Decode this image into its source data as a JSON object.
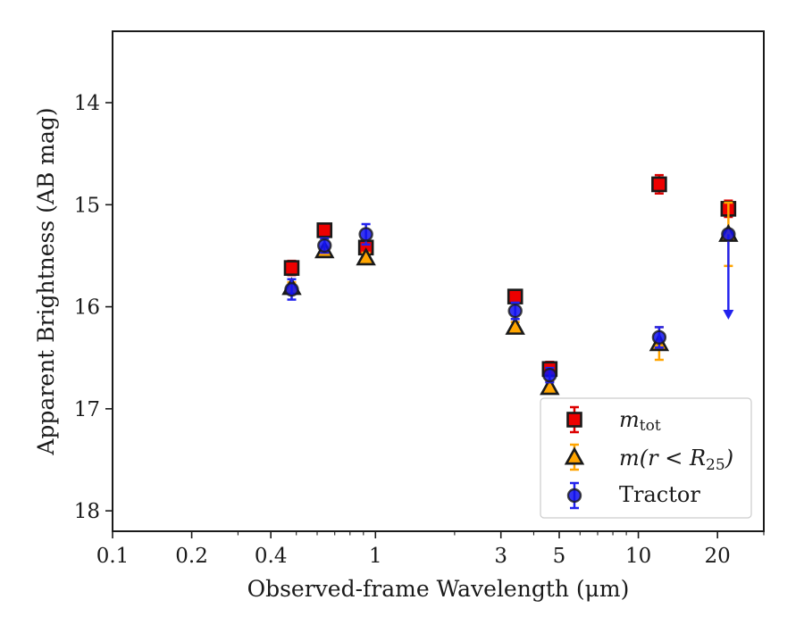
{
  "chart_data": {
    "type": "scatter",
    "xlabel": "Observed-frame Wavelength (μm)",
    "ylabel": "Apparent Brightness (AB mag)",
    "x_scale": "log",
    "xlim": [
      0.1,
      30
    ],
    "ylim": [
      18.2,
      13.3
    ],
    "y_inverted": true,
    "xticks": [
      0.1,
      0.2,
      0.4,
      1,
      3,
      5,
      10,
      20
    ],
    "xtick_labels": [
      "0.1",
      "0.2",
      "0.4",
      "1",
      "3",
      "5",
      "10",
      "20"
    ],
    "yticks": [
      14,
      15,
      16,
      17,
      18
    ],
    "ytick_labels": [
      "14",
      "15",
      "16",
      "17",
      "18"
    ],
    "legend_position": "lower-right",
    "series": [
      {
        "name": "m_tot",
        "marker": "square",
        "color": "#ee0000",
        "error_color": "#dd0000",
        "x": [
          0.48,
          0.64,
          0.92,
          3.4,
          4.6,
          12.0,
          22.0
        ],
        "y": [
          15.62,
          15.25,
          15.42,
          15.9,
          16.61,
          14.8,
          15.04
        ],
        "err": [
          0.07,
          0.06,
          0.06,
          0.06,
          0.07,
          0.09,
          0.08
        ]
      },
      {
        "name": "m(r < R25)",
        "marker": "triangle",
        "color": "#ffa500",
        "error_color": "#ffa500",
        "x": [
          0.48,
          0.64,
          0.92,
          3.4,
          4.6,
          12.0,
          22.0
        ],
        "y": [
          15.81,
          15.45,
          15.52,
          16.2,
          16.79,
          16.36,
          15.29
        ],
        "err": [
          0.05,
          0.04,
          0.05,
          0.05,
          0.06,
          0.16,
          0.31
        ]
      },
      {
        "name": "Tractor",
        "marker": "circle",
        "color": "#1010ee",
        "error_color": "#2222ee",
        "x": [
          0.48,
          0.64,
          0.92,
          3.4,
          4.6,
          12.0,
          22.0
        ],
        "y": [
          15.83,
          15.4,
          15.29,
          16.04,
          16.67,
          16.3,
          15.29
        ],
        "err": [
          0.1,
          0.07,
          0.1,
          0.08,
          0.07,
          0.1,
          0.0
        ],
        "upper_limit": [
          false,
          false,
          false,
          false,
          false,
          false,
          true
        ],
        "upper_limit_to": 16.1
      }
    ]
  },
  "legend": {
    "mtot_main": "m",
    "mtot_sub": "tot",
    "mr_main": "m",
    "mr_rest": "(r < R",
    "mr_sub": "25",
    "mr_close": ")",
    "tractor": "Tractor"
  }
}
